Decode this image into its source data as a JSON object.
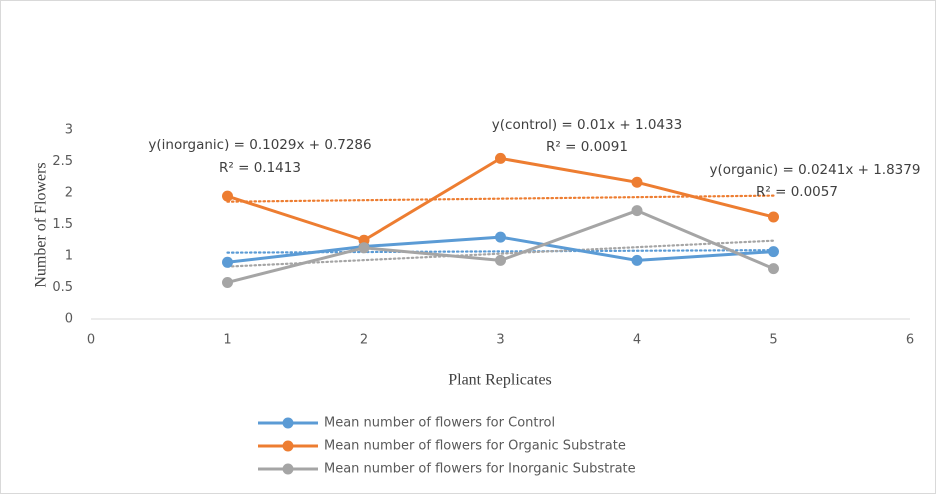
{
  "chart_data": {
    "type": "line",
    "x_label": "Plant Replicates",
    "y_label": "Number of Flowers",
    "x": [
      1,
      2,
      3,
      4,
      5
    ],
    "xlim": [
      0,
      6
    ],
    "xticks": [
      0,
      1,
      2,
      3,
      4,
      5,
      6
    ],
    "ylim": [
      0,
      3
    ],
    "yticks": [
      0,
      0.5,
      1,
      1.5,
      2,
      2.5,
      3
    ],
    "grid": false,
    "legend": "bottom",
    "series": [
      {
        "name": "Mean number of flowers for Control",
        "color": "#5b9bd5",
        "values": [
          0.9,
          1.15,
          1.3,
          0.93,
          1.07
        ],
        "trendline": {
          "slope": 0.01,
          "intercept": 1.0433,
          "equation": "y(control) = 0.01x + 1.0433",
          "r2": "R² = 0.0091"
        }
      },
      {
        "name": "Mean number of flowers for Organic Substrate",
        "color": "#ed7d31",
        "values": [
          1.95,
          1.25,
          2.55,
          2.17,
          1.62
        ],
        "trendline": {
          "slope": 0.0241,
          "intercept": 1.8379,
          "equation": "y(organic) = 0.0241x + 1.8379",
          "r2": "R² = 0.0057"
        }
      },
      {
        "name": "Mean number of flowers for Inorganic Substrate",
        "color": "#a5a5a5",
        "values": [
          0.58,
          1.13,
          0.93,
          1.72,
          0.8
        ],
        "trendline": {
          "slope": 0.1029,
          "intercept": 0.7286,
          "equation": "y(inorganic) = 0.1029x + 0.7286",
          "r2": "R² = 0.1413"
        }
      }
    ]
  }
}
